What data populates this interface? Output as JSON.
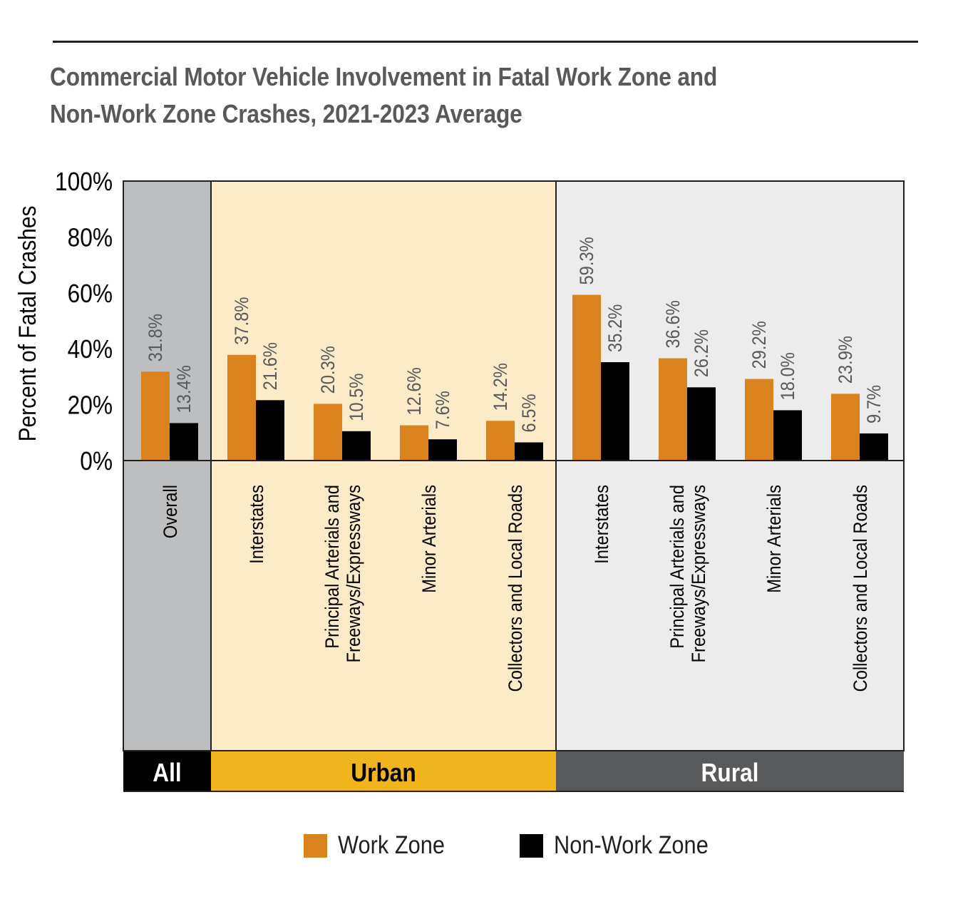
{
  "chart_data": {
    "type": "bar",
    "title_line1": "Commercial Motor Vehicle Involvement in Fatal Work Zone and",
    "title_line2": "Non-Work Zone Crashes, 2021-2023 Average",
    "ylabel": "Percent of Fatal Crashes",
    "ylim": [
      0,
      100
    ],
    "yticks": [
      "0%",
      "20%",
      "40%",
      "60%",
      "80%",
      "100%"
    ],
    "grid": false,
    "legend_position": "bottom",
    "colors": {
      "work_zone": "#d9821e",
      "non_work_zone": "#000000",
      "all_panel_bg": "#bcbec0",
      "urban_panel_bg": "#fdebc8",
      "rural_panel_bg": "#ececec",
      "all_band": "#000000",
      "urban_band": "#f0b41e",
      "rural_band": "#58595b"
    },
    "groups": [
      {
        "name": "All",
        "categories": [
          "Overall"
        ]
      },
      {
        "name": "Urban",
        "categories": [
          "Interstates",
          "Principal Arterials and Freeways/Expressways",
          "Minor Arterials",
          "Collectors and Local Roads"
        ]
      },
      {
        "name": "Rural",
        "categories": [
          "Interstates",
          "Principal Arterials and Freeways/Expressways",
          "Minor Arterials",
          "Collectors and Local Roads"
        ]
      }
    ],
    "categories": [
      [
        "Overall"
      ],
      [
        "Interstates"
      ],
      [
        "Principal Arterials and",
        "Freeways/Expressways"
      ],
      [
        "Minor Arterials"
      ],
      [
        "Collectors and Local Roads"
      ],
      [
        "Interstates"
      ],
      [
        "Principal Arterials and",
        "Freeways/Expressways"
      ],
      [
        "Minor Arterials"
      ],
      [
        "Collectors and Local Roads"
      ]
    ],
    "series": [
      {
        "name": "Work Zone",
        "values": [
          31.8,
          37.8,
          20.3,
          12.6,
          14.2,
          59.3,
          36.6,
          29.2,
          23.9
        ]
      },
      {
        "name": "Non-Work Zone",
        "values": [
          13.4,
          21.6,
          10.5,
          7.6,
          6.5,
          35.2,
          26.2,
          18.0,
          9.7
        ]
      }
    ],
    "data_labels": [
      [
        "31.8%",
        "37.8%",
        "20.3%",
        "12.6%",
        "14.2%",
        "59.3%",
        "36.6%",
        "29.2%",
        "23.9%"
      ],
      [
        "13.4%",
        "21.6%",
        "10.5%",
        "7.6%",
        "6.5%",
        "35.2%",
        "26.2%",
        "18.0%",
        "9.7%"
      ]
    ]
  }
}
